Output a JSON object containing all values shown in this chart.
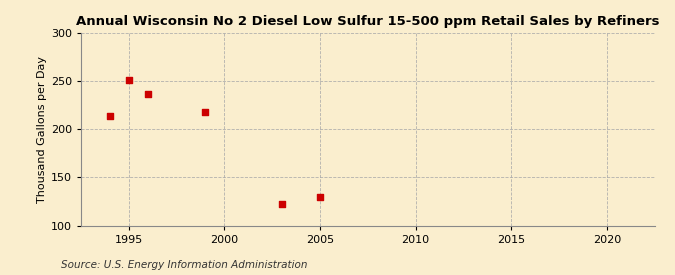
{
  "title": "Annual Wisconsin No 2 Diesel Low Sulfur 15-500 ppm Retail Sales by Refiners",
  "ylabel": "Thousand Gallons per Day",
  "source": "Source: U.S. Energy Information Administration",
  "x": [
    1994,
    1995,
    1996,
    1999,
    2003,
    2005
  ],
  "y": [
    214,
    251,
    237,
    218,
    122,
    130
  ],
  "xlim": [
    1992.5,
    2022.5
  ],
  "ylim": [
    100,
    300
  ],
  "yticks": [
    100,
    150,
    200,
    250,
    300
  ],
  "xticks": [
    1995,
    2000,
    2005,
    2010,
    2015,
    2020
  ],
  "marker_color": "#cc0000",
  "marker": "s",
  "marker_size": 4,
  "bg_color": "#faeece",
  "grid_color": "#aaaaaa",
  "title_fontsize": 9.5,
  "label_fontsize": 8,
  "tick_fontsize": 8,
  "source_fontsize": 7.5
}
